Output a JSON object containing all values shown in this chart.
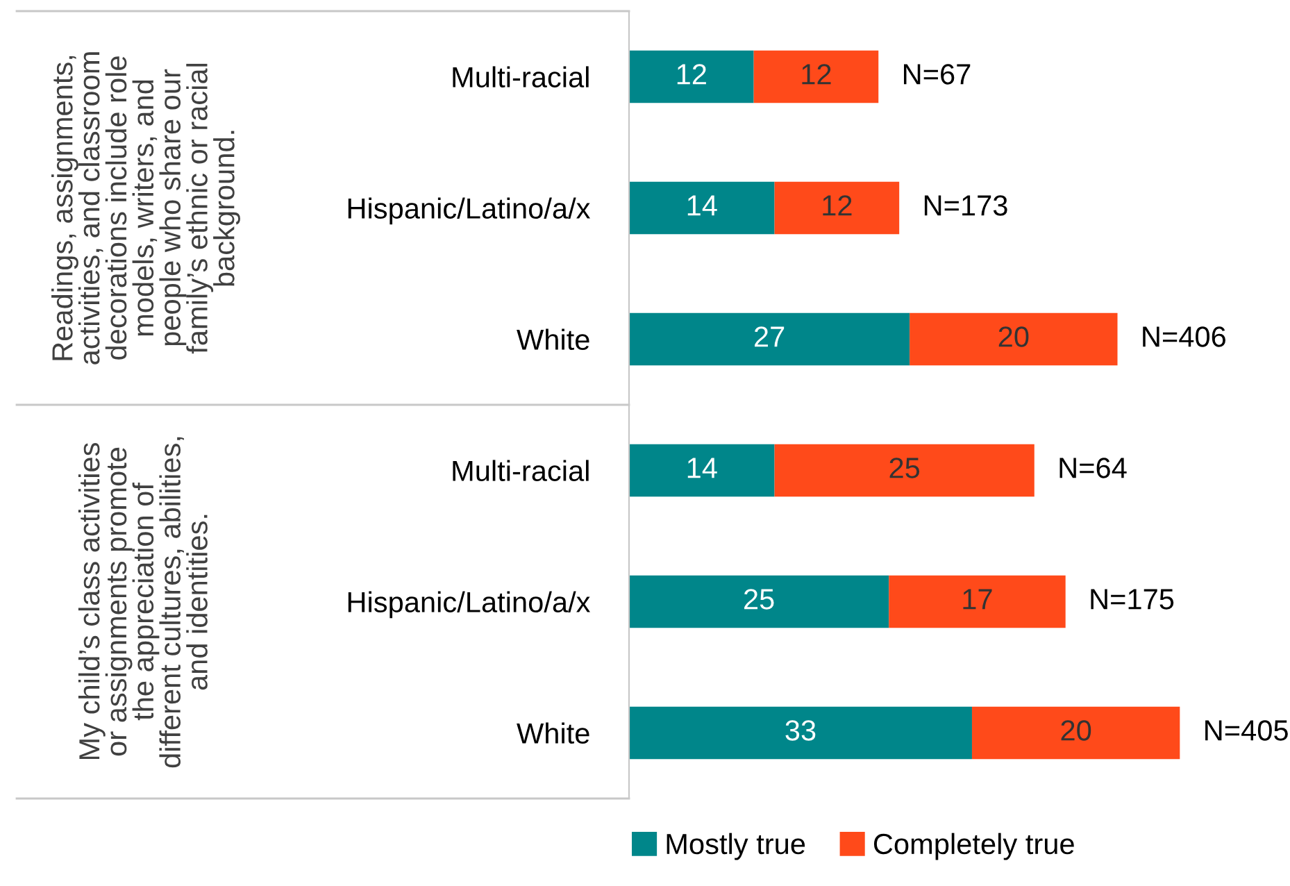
{
  "chart_data": {
    "type": "bar",
    "orientation": "horizontal",
    "stacked": true,
    "data_labels": true,
    "legend": "bottom",
    "categories": [
      "Multi-racial",
      "Hispanic/Latino/a/x",
      "White",
      "Multi-racial",
      "Hispanic/Latino/a/x",
      "White"
    ],
    "series": [
      {
        "name": "Mostly true",
        "color": "#00868a",
        "values": [
          12,
          14,
          27,
          14,
          25,
          33
        ]
      },
      {
        "name": "Completely true",
        "color": "#ff4a1a",
        "values": [
          12,
          12,
          20,
          25,
          17,
          20
        ]
      }
    ],
    "annotations": [
      {
        "text": "N=67",
        "x": 24
      },
      {
        "text": "N=173",
        "x": 26
      },
      {
        "text": "N=406",
        "x": 47
      },
      {
        "text": "N=64",
        "x": 39
      },
      {
        "text": "N=175",
        "x": 42
      },
      {
        "text": "N=405",
        "x": 53
      },
      "Readings, assignments,\nactivities, and classroom\ndecorations include role\nmodels, writers, and\npeople who share our\nfamily’s ethnic or racial\nbackground.",
      "My child’s class activities\nor assignments promote\nthe appreciation of\ndifferent cultures, abilities,\nand identities."
    ]
  }
}
